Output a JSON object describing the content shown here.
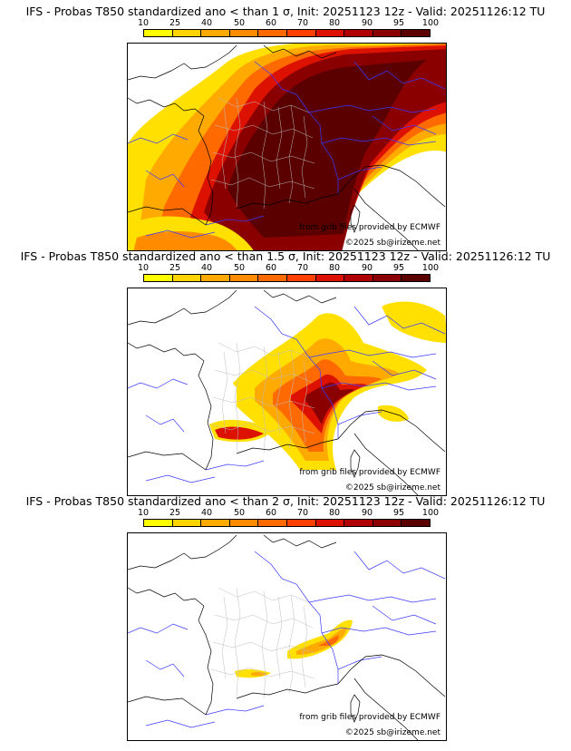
{
  "colorbar": {
    "ticks": [
      "10",
      "25",
      "40",
      "50",
      "60",
      "70",
      "80",
      "90",
      "95",
      "100"
    ],
    "colors": [
      "#ffff00",
      "#ffd400",
      "#ffaa00",
      "#ff8c00",
      "#ff6a00",
      "#ff4000",
      "#dd1100",
      "#b00000",
      "#8a0000",
      "#5a0000"
    ]
  },
  "panels": [
    {
      "title": "IFS - Probas T850  standardized ano < than 1 σ, Init: 20251123 12z - Valid: 20251126:12 TU",
      "credit_source": "from grib files provided by ECMWF",
      "credit_copyright": "©2025 sb@irizeme.net"
    },
    {
      "title": "IFS - Probas T850  standardized ano < than 1.5 σ, Init: 20251123 12z - Valid: 20251126:12 TU",
      "credit_source": "from grib files provided by ECMWF",
      "credit_copyright": "©2025 sb@irizeme.net"
    },
    {
      "title": "IFS - Probas T850  standardized ano < than 2 σ, Init: 20251123 12z - Valid: 20251126:12 TU",
      "credit_source": "from grib files provided by ECMWF",
      "credit_copyright": "©2025 sb@irizeme.net"
    }
  ]
}
